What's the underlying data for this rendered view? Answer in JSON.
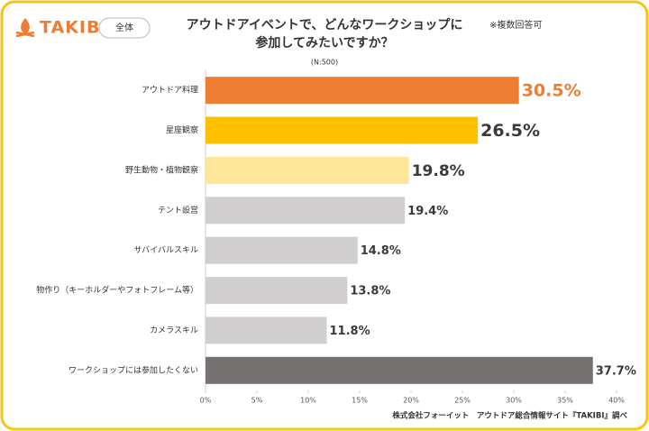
{
  "chart_data": {
    "type": "bar",
    "brand": "TAKIBI",
    "segment": "全体",
    "title": [
      "アウトドアイベントで、どんなワークショップに",
      "参加してみたいですか？"
    ],
    "note": "※複数回答可",
    "subtitle": "(N:500)",
    "categories": [
      "アウトドア料理",
      "星座観察",
      "野生動物・植物観察",
      "テント設営",
      "サバイバルスキル",
      "物作り（キーホルダーやフォトフレーム等）",
      "カメラスキル",
      "ワークショップには参加したくない"
    ],
    "values": [
      30.5,
      26.5,
      19.8,
      19.4,
      14.8,
      13.8,
      11.8,
      37.7
    ],
    "value_labels": [
      "30.5%",
      "26.5%",
      "19.8%",
      "19.4%",
      "14.8%",
      "13.8%",
      "11.8%",
      "37.7%"
    ],
    "colors": [
      "#ED7D31",
      "#FFC000",
      "#FFE699",
      "#D0CECE",
      "#D0CECE",
      "#D0CECE",
      "#D0CECE",
      "#767171"
    ],
    "xlim": [
      0,
      40
    ],
    "xticks": [
      {
        "value": 0,
        "label": "0%"
      },
      {
        "value": 5,
        "label": "5%"
      },
      {
        "value": 10,
        "label": "10%"
      },
      {
        "value": 15,
        "label": "15%"
      },
      {
        "value": 20,
        "label": "20%"
      },
      {
        "value": 25,
        "label": "25%"
      },
      {
        "value": 30,
        "label": "30%"
      },
      {
        "value": 35,
        "label": "35%"
      },
      {
        "value": 40,
        "label": "40%"
      }
    ],
    "source": "株式会社フォーイット　アウトドア総合情報サイト『TAKIBI』調べ"
  }
}
